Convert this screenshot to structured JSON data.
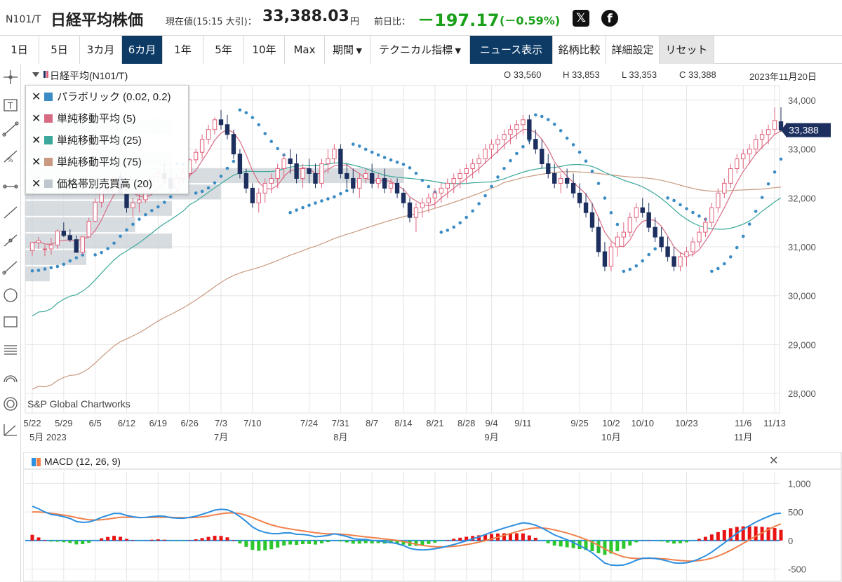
{
  "header": {
    "code": "N101/T",
    "name": "日経平均株価",
    "current_label": "現在値(15:15 大引)：",
    "current_value": "33,388.03",
    "yen": "円",
    "prev_label": "前日比：",
    "change": "－197.17",
    "change_pct": "(－0.59%)",
    "x_icon": "x-logo-icon",
    "fb_icon": "facebook-icon"
  },
  "toolbar": {
    "items": [
      {
        "label": "1日"
      },
      {
        "label": "5日"
      },
      {
        "label": "3カ月"
      },
      {
        "label": "6カ月"
      },
      {
        "label": "1年"
      },
      {
        "label": "5年"
      },
      {
        "label": "10年"
      },
      {
        "label": "Max"
      },
      {
        "label": "期間"
      },
      {
        "label": "テクニカル指標"
      },
      {
        "label": "ニュース表示"
      },
      {
        "label": "銘柄比較"
      },
      {
        "label": "詳細設定"
      },
      {
        "label": "リセット"
      }
    ]
  },
  "chart_header": {
    "name": "日経平均(N101/T)",
    "open": "O 33,560",
    "high": "H 33,853",
    "low": "L 33,353",
    "close": "C 33,388",
    "date": "2023年11月20日"
  },
  "legend": [
    {
      "label": "パラボリック (0.02, 0.2)",
      "color": "#3b8cc4"
    },
    {
      "label": "単純移動平均 (5)",
      "color": "#d86b84"
    },
    {
      "label": "単純移動平均 (25)",
      "color": "#3aa89a"
    },
    {
      "label": "単純移動平均 (75)",
      "color": "#c99a80"
    },
    {
      "label": "価格帯別売買高 (20)",
      "color": "#bfc6cd"
    }
  ],
  "watermark": "S&P Global Chartworks",
  "macd_label": "MACD (12, 26, 9)",
  "colors": {
    "up": "#e0607a",
    "down": "#1c2f5e",
    "sma5": "#d86b84",
    "sma25": "#3aa89a",
    "sma75": "#c99a80",
    "psar": "#3b8cc4",
    "vp": "#c9d0d6",
    "macd": "#2d8fe0",
    "signal": "#f0804a",
    "hist_pos": "#e81414",
    "hist_neg": "#2cc72c",
    "active_btn": "#0d3b66",
    "down_text": "#1aa01a"
  },
  "chart_data": {
    "type": "candlestick",
    "title": "日経平均(N101/T)",
    "y_ticks": [
      "34,000",
      "33,000",
      "32,000",
      "31,000",
      "30,000",
      "29,000",
      "28,000"
    ],
    "y_tick_values": [
      34000,
      33000,
      32000,
      31000,
      30000,
      29000,
      28000
    ],
    "ylim": [
      27600,
      34300
    ],
    "last_price_label": "33,388",
    "last_price": 33388,
    "x_ticks": [
      "5/22",
      "5/29",
      "6/5",
      "6/12",
      "6/19",
      "6/26",
      "7/3",
      "7/10",
      "7/24",
      "7/31",
      "8/7",
      "8/14",
      "8/21",
      "8/28",
      "9/4",
      "9/11",
      "9/25",
      "10/2",
      "10/10",
      "10/23",
      "11/6",
      "11/13"
    ],
    "x_tick_index": [
      0,
      5,
      10,
      15,
      20,
      25,
      30,
      35,
      44,
      49,
      54,
      59,
      64,
      69,
      73,
      78,
      87,
      92,
      97,
      104,
      113,
      118
    ],
    "months": [
      {
        "label": "5月 2023",
        "index": 0
      },
      {
        "label": "7月",
        "index": 30
      },
      {
        "label": "8月",
        "index": 49
      },
      {
        "label": "9月",
        "index": 73
      },
      {
        "label": "10月",
        "index": 92
      },
      {
        "label": "11月",
        "index": 113
      }
    ],
    "candles": [
      [
        30924,
        31086,
        30808,
        31086
      ],
      [
        31086,
        31204,
        30957,
        31128
      ],
      [
        30957,
        31037,
        30808,
        30957
      ],
      [
        30957,
        31183,
        30837,
        31037
      ],
      [
        31037,
        31356,
        30957,
        31323
      ],
      [
        31323,
        31500,
        31200,
        31233
      ],
      [
        31233,
        31356,
        31100,
        31148
      ],
      [
        31148,
        31233,
        30887,
        30887
      ],
      [
        30887,
        31204,
        30837,
        31204
      ],
      [
        31204,
        31600,
        31200,
        31524
      ],
      [
        31524,
        31986,
        31500,
        31913
      ],
      [
        31913,
        32237,
        31800,
        32217
      ],
      [
        32217,
        32345,
        32100,
        32265
      ],
      [
        32265,
        32500,
        32200,
        32434
      ],
      [
        32434,
        32500,
        32100,
        32100
      ],
      [
        32100,
        32350,
        31700,
        31800
      ],
      [
        31800,
        32000,
        31600,
        31900
      ],
      [
        31900,
        32100,
        31700,
        31962
      ],
      [
        31962,
        32333,
        31900,
        32265
      ],
      [
        32265,
        32500,
        32200,
        32434
      ],
      [
        32434,
        32600,
        32300,
        32500
      ],
      [
        32500,
        32700,
        32300,
        32400
      ],
      [
        32400,
        32600,
        32100,
        32200
      ],
      [
        32200,
        32500,
        32100,
        32400
      ],
      [
        32400,
        32600,
        32300,
        32500
      ],
      [
        32500,
        32812,
        32400,
        32781
      ],
      [
        32781,
        33000,
        32700,
        32934
      ],
      [
        32934,
        33300,
        32800,
        33200
      ],
      [
        33200,
        33500,
        33100,
        33400
      ],
      [
        33400,
        33650,
        33300,
        33600
      ],
      [
        33600,
        33800,
        33400,
        33500
      ],
      [
        33500,
        33700,
        33200,
        33300
      ],
      [
        33300,
        33400,
        32800,
        32900
      ],
      [
        32900,
        33000,
        32400,
        32500
      ],
      [
        32500,
        32600,
        32100,
        32200
      ],
      [
        32200,
        32300,
        31800,
        31900
      ],
      [
        31900,
        32200,
        31700,
        32100
      ],
      [
        32100,
        32400,
        31900,
        32300
      ],
      [
        32300,
        32500,
        32100,
        32400
      ],
      [
        32400,
        32700,
        32200,
        32600
      ],
      [
        32600,
        32900,
        32400,
        32800
      ],
      [
        32800,
        33000,
        32500,
        32700
      ],
      [
        32700,
        32900,
        32300,
        32400
      ],
      [
        32400,
        32700,
        32200,
        32600
      ],
      [
        32600,
        32800,
        32300,
        32500
      ],
      [
        32500,
        32700,
        32200,
        32300
      ],
      [
        32300,
        32800,
        32200,
        32700
      ],
      [
        32700,
        33000,
        32500,
        32800
      ],
      [
        32800,
        33100,
        32700,
        33000
      ],
      [
        33000,
        33100,
        32400,
        32500
      ],
      [
        32500,
        32700,
        32200,
        32400
      ],
      [
        32400,
        32600,
        32100,
        32200
      ],
      [
        32200,
        32500,
        32000,
        32400
      ],
      [
        32400,
        32600,
        32300,
        32500
      ],
      [
        32500,
        32700,
        32200,
        32300
      ],
      [
        32300,
        32500,
        32200,
        32400
      ],
      [
        32400,
        32600,
        32100,
        32200
      ],
      [
        32200,
        32400,
        32100,
        32300
      ],
      [
        32300,
        32400,
        32000,
        32100
      ],
      [
        32100,
        32200,
        31800,
        31900
      ],
      [
        31900,
        32000,
        31500,
        31600
      ],
      [
        31600,
        31900,
        31300,
        31800
      ],
      [
        31800,
        32000,
        31600,
        31900
      ],
      [
        31900,
        32100,
        31700,
        32000
      ],
      [
        32000,
        32200,
        31800,
        32100
      ],
      [
        32100,
        32300,
        31900,
        32200
      ],
      [
        32200,
        32400,
        32000,
        32300
      ],
      [
        32300,
        32500,
        32100,
        32400
      ],
      [
        32400,
        32600,
        32200,
        32500
      ],
      [
        32500,
        32700,
        32300,
        32600
      ],
      [
        32600,
        32800,
        32400,
        32700
      ],
      [
        32700,
        32900,
        32500,
        32800
      ],
      [
        32800,
        33100,
        32700,
        33000
      ],
      [
        33000,
        33200,
        32800,
        33100
      ],
      [
        33100,
        33300,
        32900,
        33200
      ],
      [
        33200,
        33400,
        33000,
        33300
      ],
      [
        33300,
        33500,
        33100,
        33400
      ],
      [
        33400,
        33600,
        33200,
        33500
      ],
      [
        33500,
        33700,
        33300,
        33600
      ],
      [
        33600,
        33700,
        33100,
        33200
      ],
      [
        33200,
        33400,
        32900,
        33000
      ],
      [
        33000,
        33200,
        32600,
        32700
      ],
      [
        32700,
        32900,
        32400,
        32500
      ],
      [
        32500,
        32700,
        32200,
        32300
      ],
      [
        32300,
        32500,
        32100,
        32400
      ],
      [
        32400,
        32600,
        32200,
        32300
      ],
      [
        32300,
        32500,
        32000,
        32100
      ],
      [
        32100,
        32300,
        31800,
        31900
      ],
      [
        31900,
        32100,
        31600,
        31700
      ],
      [
        31700,
        31900,
        31300,
        31400
      ],
      [
        31400,
        31600,
        30800,
        30900
      ],
      [
        30900,
        31100,
        30500,
        30600
      ],
      [
        30600,
        31100,
        30500,
        31000
      ],
      [
        31000,
        31300,
        30800,
        31200
      ],
      [
        31200,
        31500,
        31000,
        31300
      ],
      [
        31300,
        31700,
        31200,
        31600
      ],
      [
        31600,
        31900,
        31500,
        31800
      ],
      [
        31800,
        32000,
        31600,
        31700
      ],
      [
        31700,
        31900,
        31300,
        31400
      ],
      [
        31400,
        31600,
        31100,
        31200
      ],
      [
        31200,
        31400,
        30900,
        31000
      ],
      [
        31000,
        31200,
        30700,
        30800
      ],
      [
        30800,
        31000,
        30500,
        30600
      ],
      [
        30600,
        30900,
        30500,
        30800
      ],
      [
        30800,
        31000,
        30600,
        30900
      ],
      [
        30900,
        31200,
        30800,
        31100
      ],
      [
        31100,
        31400,
        31000,
        31300
      ],
      [
        31300,
        31600,
        31200,
        31500
      ],
      [
        31500,
        31900,
        31400,
        31800
      ],
      [
        31800,
        32200,
        31700,
        32100
      ],
      [
        32100,
        32400,
        32000,
        32300
      ],
      [
        32300,
        32700,
        32200,
        32600
      ],
      [
        32600,
        32900,
        32500,
        32800
      ],
      [
        32800,
        33000,
        32600,
        32900
      ],
      [
        32900,
        33100,
        32700,
        33000
      ],
      [
        33000,
        33300,
        32900,
        33200
      ],
      [
        33200,
        33400,
        33000,
        33300
      ],
      [
        33300,
        33500,
        33100,
        33400
      ],
      [
        33400,
        33853,
        33300,
        33585
      ],
      [
        33560,
        33853,
        33353,
        33388
      ]
    ],
    "macd_y_ticks": [
      "1,000",
      "500",
      "0",
      "-500"
    ],
    "macd_y_tick_values": [
      1000,
      500,
      0,
      -500
    ],
    "macd_ylim": [
      -700,
      1200
    ]
  }
}
